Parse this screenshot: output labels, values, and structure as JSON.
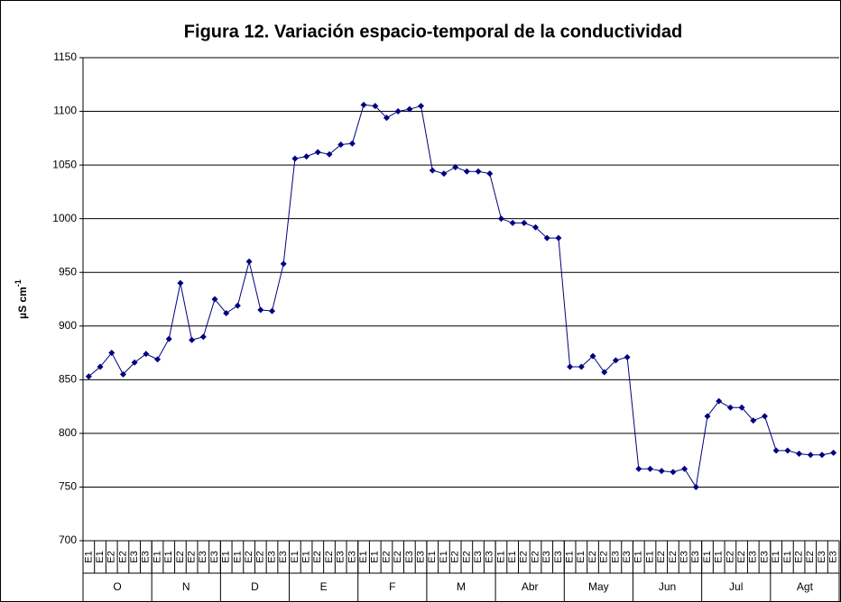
{
  "chart_data": {
    "type": "line",
    "title": "Figura 12. Variación espacio-temporal de la conductividad",
    "ylabel": "µS cm",
    "ylabel_sup": "-1",
    "groups": [
      "O",
      "N",
      "D",
      "E",
      "F",
      "M",
      "Abr",
      "May",
      "Jun",
      "Jul",
      "Agt"
    ],
    "categories": [
      "E1",
      "E1",
      "E2",
      "E2",
      "E3",
      "E3",
      "E1",
      "E1",
      "E2",
      "E2",
      "E3",
      "E3",
      "E1",
      "E1",
      "E2",
      "E2",
      "E3",
      "E3",
      "E1",
      "E1",
      "E2",
      "E2",
      "E3",
      "E3",
      "E1",
      "E1",
      "E2",
      "E2",
      "E3",
      "E3",
      "E1",
      "E1",
      "E2",
      "E2",
      "E3",
      "E3",
      "E1",
      "E1",
      "E2",
      "E2",
      "E3",
      "E3",
      "E1",
      "E1",
      "E2",
      "E2",
      "E3",
      "E3",
      "E1",
      "E1",
      "E2",
      "E2",
      "E3",
      "E3",
      "E1",
      "E1",
      "E2",
      "E2",
      "E3",
      "E3",
      "E1",
      "E1",
      "E2",
      "E2",
      "E3",
      "E3"
    ],
    "series": [
      {
        "color": "#000080",
        "values": [
          853,
          862,
          875,
          855,
          866,
          874,
          869,
          888,
          940,
          887,
          890,
          925,
          912,
          919,
          960,
          915,
          914,
          958,
          1056,
          1058,
          1062,
          1060,
          1069,
          1070,
          1106,
          1105,
          1094,
          1100,
          1102,
          1105,
          1045,
          1042,
          1048,
          1044,
          1044,
          1042,
          1000,
          996,
          996,
          992,
          982,
          982,
          862,
          862,
          872,
          857,
          868,
          871,
          767,
          767,
          765,
          764,
          767,
          750,
          816,
          830,
          824,
          824,
          812,
          816,
          784,
          784,
          781,
          780,
          780,
          782
        ]
      }
    ],
    "ylim": [
      700,
      1150
    ],
    "yticks": [
      700,
      750,
      800,
      850,
      900,
      950,
      1000,
      1050,
      1100,
      1150
    ],
    "grid": true
  }
}
